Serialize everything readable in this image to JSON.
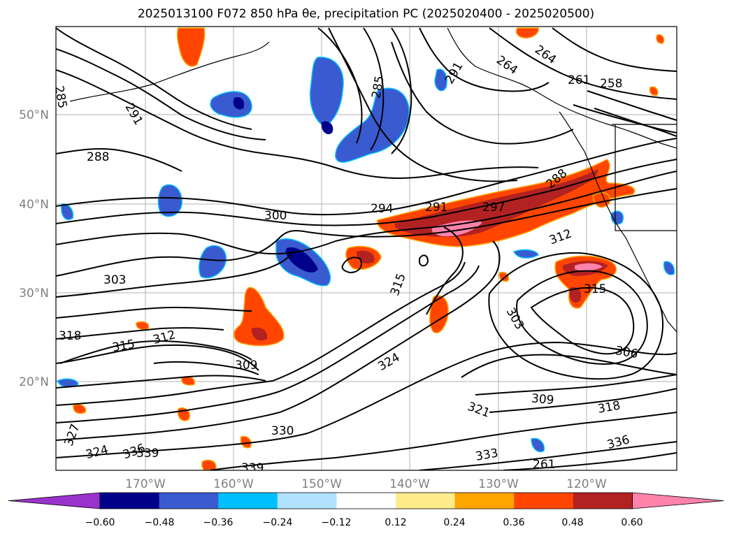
{
  "title": "2025013100 F072 850 hPa θe, precipitation PC (2025020400 - 2025020500)",
  "map": {
    "lon_ticks": [
      "170°W",
      "160°W",
      "150°W",
      "140°W",
      "130°W",
      "120°W"
    ],
    "lat_ticks": [
      "50°N",
      "40°N",
      "30°N",
      "20°N"
    ],
    "contour_labels": [
      "285",
      "291",
      "288",
      "285",
      "264",
      "261",
      "258",
      "264",
      "288",
      "300",
      "294",
      "291",
      "297",
      "303",
      "315",
      "312",
      "318",
      "315",
      "312",
      "309",
      "324",
      "303",
      "306",
      "309",
      "318",
      "321",
      "327",
      "330",
      "324",
      "336",
      "339",
      "339",
      "333",
      "336",
      "315",
      "261",
      "291"
    ]
  },
  "colorbar": {
    "ticks": [
      "−0.60",
      "−0.48",
      "−0.36",
      "−0.24",
      "−0.12",
      "0.12",
      "0.24",
      "0.36",
      "0.48",
      "0.60"
    ],
    "colors": [
      "#9932CC",
      "#00008B",
      "#3A5BD0",
      "#00BFFF",
      "#B0E2FF",
      "#FFFFFF",
      "#FFEC8B",
      "#FFA500",
      "#FF4500",
      "#B22222",
      "#FF82AB"
    ]
  }
}
